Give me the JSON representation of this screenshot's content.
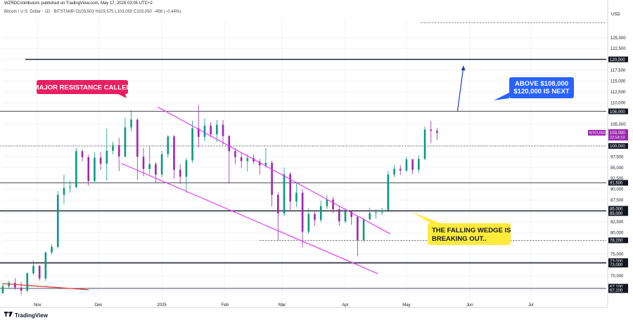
{
  "header": {
    "publisher_line": "WZRDContributors published on TradingView.com, May 17, 2025 03:05 UTC+2",
    "symbol_line": "Bitcoin / U.S. Dollar · 1D · BITSTAMP  O103,503  H103,575  L103,050  C103,050  −456 (−0.44%)"
  },
  "footer": {
    "brand": "TradingView"
  },
  "colors": {
    "up_candle": "#089981",
    "down_candle": "#9c27b0",
    "wedge": "#e040fb",
    "callout_red": "#e91e63",
    "callout_blue": "#2962ff",
    "callout_yellow": "#ffeb3b",
    "price_badge": "#9c27b0"
  },
  "annotations": {
    "resistance": "MAJOR RESISTANCE CALLED",
    "target_line1": "ABOVE $108,000",
    "target_line2": "$120,000 IS NEXT",
    "wedge_line1": "THE FALLING WEDGE IS",
    "wedge_line2": "BREAKING OUT.."
  },
  "chart_data": {
    "type": "candlestick",
    "symbol": "BTCUSD",
    "currency": "USD",
    "last_price": "103,050",
    "countdown": "22:54:10",
    "ylim": [
      64000,
      129500
    ],
    "y_ticks": [
      {
        "v": 125000,
        "t": "125,000"
      },
      {
        "v": 122500,
        "t": "122,500"
      },
      {
        "v": 117500,
        "t": "117,500"
      },
      {
        "v": 115000,
        "t": "115,000"
      },
      {
        "v": 112500,
        "t": "112,500"
      },
      {
        "v": 110000,
        "t": "110,000"
      },
      {
        "v": 105000,
        "t": "105,000"
      },
      {
        "v": 97500,
        "t": "97,500"
      },
      {
        "v": 95000,
        "t": "95,000"
      },
      {
        "v": 92500,
        "t": "92,500"
      },
      {
        "v": 90000,
        "t": "90,000"
      },
      {
        "v": 87500,
        "t": "87,500"
      },
      {
        "v": 82500,
        "t": "82,500"
      },
      {
        "v": 80000,
        "t": "80,000"
      },
      {
        "v": 75000,
        "t": "75,000"
      },
      {
        "v": 70000,
        "t": "70,000"
      }
    ],
    "level_badges": [
      {
        "v": 120000,
        "t": "120,000"
      },
      {
        "v": 108000,
        "t": "108,000"
      },
      {
        "v": 100000,
        "t": "100,000"
      },
      {
        "v": 91500,
        "t": "91,500"
      },
      {
        "v": 85500,
        "t": "85,000"
      },
      {
        "v": 84500,
        "t": "85,000"
      },
      {
        "v": 78200,
        "t": "78,200"
      },
      {
        "v": 73400,
        "t": "73,000"
      },
      {
        "v": 72600,
        "t": "73,000"
      },
      {
        "v": 67500,
        "t": "67,100"
      },
      {
        "v": 66700,
        "t": "67,100"
      }
    ],
    "horizontal_levels": [
      {
        "price": 120000,
        "style": "solid",
        "from": "2024-10-26",
        "to": "2025-08-01"
      },
      {
        "price": 108000,
        "style": "solid-thin",
        "from": "2024-10-01",
        "to": "2025-08-01"
      },
      {
        "price": 100000,
        "style": "dashed",
        "from": "2024-10-01",
        "to": "2025-08-01"
      },
      {
        "price": 91500,
        "style": "solid-thin",
        "from": "2024-10-01",
        "to": "2025-08-01"
      },
      {
        "price": 85000,
        "style": "solid",
        "from": "2024-10-01",
        "to": "2025-08-01"
      },
      {
        "price": 78200,
        "style": "dashed",
        "from": "2025-02-18",
        "to": "2025-08-01"
      },
      {
        "price": 73000,
        "style": "solid",
        "from": "2024-10-01",
        "to": "2025-08-01"
      },
      {
        "price": 67100,
        "style": "solid-thin",
        "from": "2024-10-01",
        "to": "2025-08-01"
      },
      {
        "price": 128500,
        "style": "dashed",
        "from": "2025-05-08",
        "to": "2025-08-01"
      }
    ],
    "x_ticks": [
      {
        "date": "2024-11-01",
        "t": "Nov"
      },
      {
        "date": "2024-12-01",
        "t": "Dec"
      },
      {
        "date": "2025-01-01",
        "t": "2025"
      },
      {
        "date": "2025-02-01",
        "t": "Feb"
      },
      {
        "date": "2025-03-01",
        "t": "Mar"
      },
      {
        "date": "2025-04-01",
        "t": "Apr"
      },
      {
        "date": "2025-05-01",
        "t": "May"
      },
      {
        "date": "2025-06-01",
        "t": "Jun"
      },
      {
        "date": "2025-07-01",
        "t": "Jul"
      }
    ],
    "xlim": [
      "2024-10-15",
      "2025-08-07"
    ],
    "wedge_upper": [
      {
        "date": "2024-12-30",
        "price": 109000
      },
      {
        "date": "2025-04-23",
        "price": 79700
      }
    ],
    "wedge_lower": [
      {
        "date": "2024-12-12",
        "price": 96000
      },
      {
        "date": "2025-04-17",
        "price": 70500
      }
    ],
    "red_trendline": [
      {
        "date": "2024-10-15",
        "price": 68200
      },
      {
        "date": "2024-11-26",
        "price": 66800
      }
    ],
    "target_arrow": [
      {
        "date": "2025-05-26",
        "price": 108000
      },
      {
        "date": "2025-05-29",
        "price": 118500
      }
    ],
    "ohlc": [
      {
        "d": "2024-10-15",
        "o": 66000,
        "h": 68400,
        "l": 65900,
        "c": 67600
      },
      {
        "d": "2024-10-18",
        "o": 67600,
        "h": 68900,
        "l": 67000,
        "c": 68400
      },
      {
        "d": "2024-10-21",
        "o": 68400,
        "h": 69500,
        "l": 66800,
        "c": 67300
      },
      {
        "d": "2024-10-24",
        "o": 67300,
        "h": 68600,
        "l": 65500,
        "c": 66600
      },
      {
        "d": "2024-10-27",
        "o": 66600,
        "h": 70800,
        "l": 66200,
        "c": 70600
      },
      {
        "d": "2024-10-30",
        "o": 70600,
        "h": 73600,
        "l": 70200,
        "c": 72300
      },
      {
        "d": "2024-11-02",
        "o": 72300,
        "h": 72500,
        "l": 68900,
        "c": 69400
      },
      {
        "d": "2024-11-05",
        "o": 69400,
        "h": 75600,
        "l": 68800,
        "c": 75400
      },
      {
        "d": "2024-11-08",
        "o": 75400,
        "h": 77300,
        "l": 74900,
        "c": 76700
      },
      {
        "d": "2024-11-11",
        "o": 76700,
        "h": 89600,
        "l": 76300,
        "c": 88700
      },
      {
        "d": "2024-11-14",
        "o": 88700,
        "h": 93400,
        "l": 86600,
        "c": 90300
      },
      {
        "d": "2024-11-17",
        "o": 90300,
        "h": 92000,
        "l": 89200,
        "c": 90500
      },
      {
        "d": "2024-11-20",
        "o": 90500,
        "h": 99500,
        "l": 90200,
        "c": 98800
      },
      {
        "d": "2024-11-23",
        "o": 98800,
        "h": 99200,
        "l": 96400,
        "c": 97400
      },
      {
        "d": "2024-11-26",
        "o": 97400,
        "h": 98000,
        "l": 90800,
        "c": 91900
      },
      {
        "d": "2024-11-29",
        "o": 91900,
        "h": 98600,
        "l": 91500,
        "c": 97300
      },
      {
        "d": "2024-12-02",
        "o": 97300,
        "h": 98600,
        "l": 94500,
        "c": 95900
      },
      {
        "d": "2024-12-05",
        "o": 95900,
        "h": 104000,
        "l": 92000,
        "c": 98900
      },
      {
        "d": "2024-12-08",
        "o": 98900,
        "h": 101000,
        "l": 98100,
        "c": 100200
      },
      {
        "d": "2024-12-11",
        "o": 100200,
        "h": 101900,
        "l": 94200,
        "c": 97600
      },
      {
        "d": "2024-12-14",
        "o": 97600,
        "h": 106500,
        "l": 97300,
        "c": 104300
      },
      {
        "d": "2024-12-17",
        "o": 104300,
        "h": 108300,
        "l": 103400,
        "c": 106100
      },
      {
        "d": "2024-12-20",
        "o": 106100,
        "h": 106300,
        "l": 92200,
        "c": 97500
      },
      {
        "d": "2024-12-23",
        "o": 97500,
        "h": 99500,
        "l": 93000,
        "c": 94700
      },
      {
        "d": "2024-12-26",
        "o": 94700,
        "h": 99900,
        "l": 93400,
        "c": 95800
      },
      {
        "d": "2024-12-29",
        "o": 95800,
        "h": 96300,
        "l": 91600,
        "c": 93400
      },
      {
        "d": "2025-01-01",
        "o": 93400,
        "h": 98900,
        "l": 92800,
        "c": 98100
      },
      {
        "d": "2025-01-04",
        "o": 98100,
        "h": 102500,
        "l": 97300,
        "c": 102200
      },
      {
        "d": "2025-01-07",
        "o": 102200,
        "h": 102500,
        "l": 92500,
        "c": 94500
      },
      {
        "d": "2025-01-10",
        "o": 94500,
        "h": 95800,
        "l": 91200,
        "c": 92900
      },
      {
        "d": "2025-01-13",
        "o": 92900,
        "h": 97200,
        "l": 89200,
        "c": 96700
      },
      {
        "d": "2025-01-16",
        "o": 96700,
        "h": 105800,
        "l": 96100,
        "c": 104100
      },
      {
        "d": "2025-01-19",
        "o": 104100,
        "h": 109500,
        "l": 99700,
        "c": 102100
      },
      {
        "d": "2025-01-22",
        "o": 102100,
        "h": 106400,
        "l": 101100,
        "c": 104700
      },
      {
        "d": "2025-01-25",
        "o": 104700,
        "h": 105500,
        "l": 101900,
        "c": 102700
      },
      {
        "d": "2025-01-28",
        "o": 102700,
        "h": 106000,
        "l": 100900,
        "c": 104900
      },
      {
        "d": "2025-01-31",
        "o": 104900,
        "h": 106000,
        "l": 100300,
        "c": 102300
      },
      {
        "d": "2025-02-03",
        "o": 102300,
        "h": 102500,
        "l": 91300,
        "c": 98800
      },
      {
        "d": "2025-02-06",
        "o": 98800,
        "h": 99500,
        "l": 95800,
        "c": 97400
      },
      {
        "d": "2025-02-09",
        "o": 97400,
        "h": 98400,
        "l": 94900,
        "c": 96500
      },
      {
        "d": "2025-02-12",
        "o": 96500,
        "h": 98100,
        "l": 94100,
        "c": 97200
      },
      {
        "d": "2025-02-15",
        "o": 97200,
        "h": 98000,
        "l": 95900,
        "c": 96400
      },
      {
        "d": "2025-02-18",
        "o": 96400,
        "h": 97000,
        "l": 93400,
        "c": 95500
      },
      {
        "d": "2025-02-21",
        "o": 95500,
        "h": 99500,
        "l": 94900,
        "c": 96100
      },
      {
        "d": "2025-02-24",
        "o": 96100,
        "h": 96600,
        "l": 86000,
        "c": 88700
      },
      {
        "d": "2025-02-27",
        "o": 88700,
        "h": 89300,
        "l": 78200,
        "c": 84400
      },
      {
        "d": "2025-03-02",
        "o": 84400,
        "h": 95000,
        "l": 83800,
        "c": 93500
      },
      {
        "d": "2025-03-05",
        "o": 93500,
        "h": 94000,
        "l": 85200,
        "c": 87200
      },
      {
        "d": "2025-03-08",
        "o": 87200,
        "h": 91700,
        "l": 85900,
        "c": 89200
      },
      {
        "d": "2025-03-11",
        "o": 89200,
        "h": 90000,
        "l": 76600,
        "c": 80200
      },
      {
        "d": "2025-03-14",
        "o": 80200,
        "h": 85600,
        "l": 79700,
        "c": 84300
      },
      {
        "d": "2025-03-17",
        "o": 84300,
        "h": 84800,
        "l": 81500,
        "c": 82900
      },
      {
        "d": "2025-03-20",
        "o": 82900,
        "h": 87400,
        "l": 82400,
        "c": 86100
      },
      {
        "d": "2025-03-23",
        "o": 86100,
        "h": 88700,
        "l": 85500,
        "c": 87600
      },
      {
        "d": "2025-03-26",
        "o": 87600,
        "h": 88200,
        "l": 84500,
        "c": 85400
      },
      {
        "d": "2025-03-29",
        "o": 85400,
        "h": 86100,
        "l": 81600,
        "c": 82600
      },
      {
        "d": "2025-04-01",
        "o": 82600,
        "h": 85600,
        "l": 82100,
        "c": 84900
      },
      {
        "d": "2025-04-04",
        "o": 84900,
        "h": 85100,
        "l": 81800,
        "c": 83600
      },
      {
        "d": "2025-04-07",
        "o": 83600,
        "h": 83900,
        "l": 74500,
        "c": 78300
      },
      {
        "d": "2025-04-10",
        "o": 78300,
        "h": 83500,
        "l": 77800,
        "c": 83100
      },
      {
        "d": "2025-04-13",
        "o": 83100,
        "h": 85800,
        "l": 82700,
        "c": 84500
      },
      {
        "d": "2025-04-16",
        "o": 84500,
        "h": 85400,
        "l": 83200,
        "c": 84700
      },
      {
        "d": "2025-04-19",
        "o": 84700,
        "h": 85700,
        "l": 84100,
        "c": 85100
      },
      {
        "d": "2025-04-22",
        "o": 85100,
        "h": 94200,
        "l": 84800,
        "c": 93400
      },
      {
        "d": "2025-04-25",
        "o": 93400,
        "h": 95600,
        "l": 92800,
        "c": 94700
      },
      {
        "d": "2025-04-28",
        "o": 94700,
        "h": 95600,
        "l": 93300,
        "c": 94300
      },
      {
        "d": "2025-05-01",
        "o": 94300,
        "h": 97500,
        "l": 94000,
        "c": 96900
      },
      {
        "d": "2025-05-04",
        "o": 96900,
        "h": 97000,
        "l": 93500,
        "c": 94500
      },
      {
        "d": "2025-05-07",
        "o": 94500,
        "h": 97800,
        "l": 93800,
        "c": 97000
      },
      {
        "d": "2025-05-10",
        "o": 97000,
        "h": 104500,
        "l": 96800,
        "c": 103800
      },
      {
        "d": "2025-05-13",
        "o": 103800,
        "h": 105800,
        "l": 100700,
        "c": 103500
      },
      {
        "d": "2025-05-16",
        "o": 103500,
        "h": 104100,
        "l": 101400,
        "c": 103050
      }
    ]
  }
}
